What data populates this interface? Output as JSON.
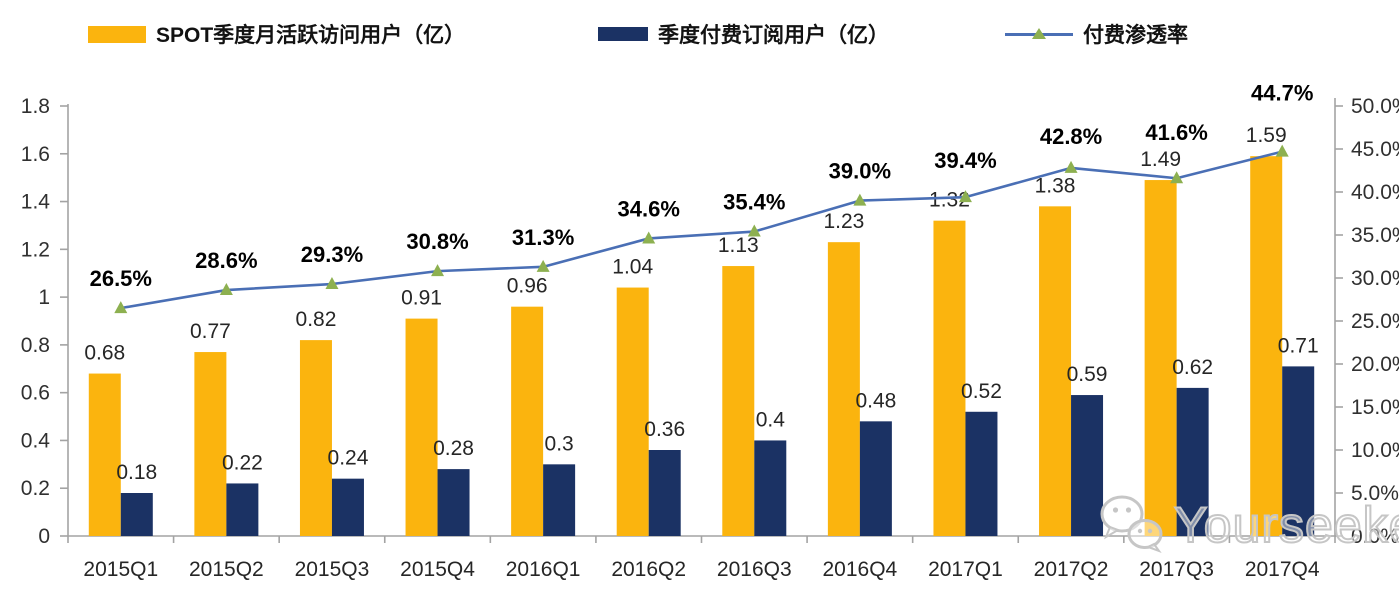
{
  "legend": [
    {
      "label": "SPOT季度月活跃访问用户（亿）",
      "type": "bar",
      "color": "#FBB40E"
    },
    {
      "label": "季度付费订阅用户（亿）",
      "type": "bar",
      "color": "#1B3264"
    },
    {
      "label": "付费渗透率",
      "type": "line",
      "color": "#4A6FB5",
      "marker_color": "#8DB050"
    }
  ],
  "watermark": {
    "text": "Yourseeker",
    "icon": "wechat-icon",
    "color": "#C6C6C6"
  },
  "chart_data": {
    "type": "bar",
    "subtype": "bar+line combo, dual axis",
    "title": "",
    "categories": [
      "2015Q1",
      "2015Q2",
      "2015Q3",
      "2015Q4",
      "2016Q1",
      "2016Q2",
      "2016Q3",
      "2016Q4",
      "2017Q1",
      "2017Q2",
      "2017Q3",
      "2017Q4"
    ],
    "series": [
      {
        "name": "SPOT季度月活跃访问用户（亿）",
        "type": "bar",
        "axis": "left",
        "color": "#FBB40E",
        "values": [
          0.68,
          0.77,
          0.82,
          0.91,
          0.96,
          1.04,
          1.13,
          1.23,
          1.32,
          1.38,
          1.49,
          1.59
        ],
        "labels": [
          "0.68",
          "0.77",
          "0.82",
          "0.91",
          "0.96",
          "1.04",
          "1.13",
          "1.23",
          "1.32",
          "1.38",
          "1.49",
          "1.59"
        ]
      },
      {
        "name": "季度付费订阅用户（亿）",
        "type": "bar",
        "axis": "left",
        "color": "#1B3264",
        "values": [
          0.18,
          0.22,
          0.24,
          0.28,
          0.3,
          0.36,
          0.4,
          0.48,
          0.52,
          0.59,
          0.62,
          0.71
        ],
        "labels": [
          "0.18",
          "0.22",
          "0.24",
          "0.28",
          "0.3",
          "0.36",
          "0.4",
          "0.48",
          "0.52",
          "0.59",
          "0.62",
          "0.71"
        ]
      },
      {
        "name": "付费渗透率",
        "type": "line",
        "axis": "right",
        "color": "#4A6FB5",
        "marker": "triangle",
        "marker_color": "#8DB050",
        "values": [
          26.5,
          28.6,
          29.3,
          30.8,
          31.3,
          34.6,
          35.4,
          39.0,
          39.4,
          42.8,
          41.6,
          44.7
        ],
        "labels": [
          "26.5%",
          "28.6%",
          "29.3%",
          "30.8%",
          "31.3%",
          "34.6%",
          "35.4%",
          "39.0%",
          "39.4%",
          "42.8%",
          "41.6%",
          "44.7%"
        ]
      }
    ],
    "left_axis": {
      "min": 0,
      "max": 1.8,
      "step": 0.2,
      "tick_labels": [
        "0",
        "0.2",
        "0.4",
        "0.6",
        "0.8",
        "1",
        "1.2",
        "1.4",
        "1.6",
        "1.8"
      ]
    },
    "right_axis": {
      "min": 0,
      "max": 50,
      "step": 5,
      "tick_labels": [
        "0.0%",
        "5.0%",
        "10.0%",
        "15.0%",
        "20.0%",
        "25.0%",
        "30.0%",
        "35.0%",
        "40.0%",
        "45.0%",
        "50.0%"
      ]
    },
    "grid": "off",
    "legend_position": "top",
    "pct_label_offsets": [
      22,
      22,
      22,
      22,
      22,
      22,
      22,
      22,
      29,
      24,
      38,
      51
    ],
    "axis_color": "#A3A3A3",
    "label_color": "#262626"
  }
}
